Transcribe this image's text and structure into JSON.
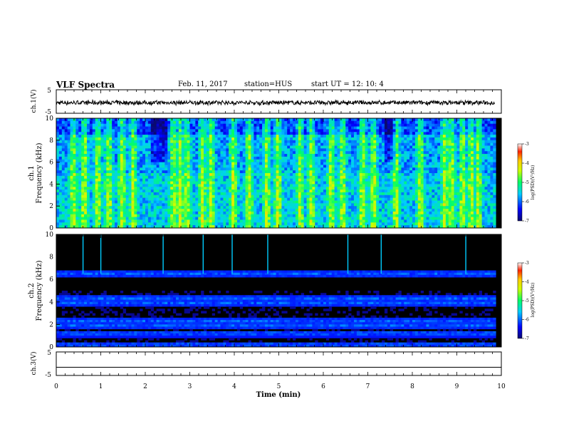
{
  "header": {
    "title": "VLF Spectra",
    "date": "Feb. 11, 2017",
    "station": "station=HUS",
    "start": "start  UT =   12: 10: 4"
  },
  "chart_data": [
    {
      "type": "line",
      "panel": "ch1-waveform",
      "ylabel": "ch.1(V)",
      "ylim": [
        -5,
        5
      ],
      "yticks": [
        "5",
        "-5"
      ],
      "xlim": [
        0,
        10
      ],
      "signal": "dense noise trace around -0.5 V"
    },
    {
      "type": "heatmap",
      "panel": "ch1-spectrogram",
      "ylabel_1": "ch.1",
      "ylabel_2": "Frequency  (kHz)",
      "ylim": [
        0,
        10
      ],
      "yticks": [
        "0",
        "2",
        "4",
        "6",
        "8",
        "10"
      ],
      "xlim": [
        0,
        10
      ],
      "colorbar": {
        "label": "log(PSD)(V²/Hz)",
        "ticks": [
          "-3",
          "-4",
          "-5",
          "-6",
          "-7"
        ],
        "range": [
          -7,
          -3
        ]
      },
      "background": "broadband green/cyan with vertical sferic bursts",
      "bright_columns_min": [
        0.35,
        0.6,
        0.9,
        1.15,
        1.45,
        1.7,
        2.6,
        2.75,
        2.9,
        3.25,
        3.45,
        3.95,
        4.3,
        4.7,
        4.95,
        5.45,
        5.7,
        6.15,
        6.4,
        6.85,
        7.1,
        7.6,
        8.15,
        8.7,
        8.85,
        9.1,
        9.3,
        9.45
      ]
    },
    {
      "type": "heatmap",
      "panel": "ch2-spectrogram",
      "ylabel_1": "ch.2",
      "ylabel_2": "Frequency  (kHz)",
      "ylim": [
        0,
        10
      ],
      "yticks": [
        "0",
        "2",
        "4",
        "6",
        "8",
        "10"
      ],
      "xlim": [
        0,
        10
      ],
      "colorbar": {
        "label": "log(PSD)(V²/Hz)",
        "ticks": [
          "-3",
          "-4",
          "-5",
          "-6",
          "-7"
        ],
        "range": [
          -7,
          -3
        ]
      },
      "bands_khz": [
        0.2,
        1.2,
        1.9,
        2.3,
        3.9,
        4.3,
        6.5
      ],
      "sferics_min": [
        0.6,
        1.0,
        2.4,
        3.3,
        3.95,
        4.75,
        6.55,
        7.3,
        9.2
      ]
    },
    {
      "type": "line",
      "panel": "ch3-waveform",
      "ylabel": "ch.3(V)",
      "ylim": [
        -5,
        5
      ],
      "yticks": [
        "5",
        "-5"
      ],
      "xlim": [
        0,
        10
      ],
      "signal": "flat line at about -1.5 V"
    }
  ],
  "xaxis": {
    "label": "Time  (min)",
    "ticks": [
      "0",
      "1",
      "2",
      "3",
      "4",
      "5",
      "6",
      "7",
      "8",
      "9",
      "10"
    ]
  },
  "colors": {
    "background": "#000000",
    "frame": "#000000",
    "trace": "#000000"
  }
}
